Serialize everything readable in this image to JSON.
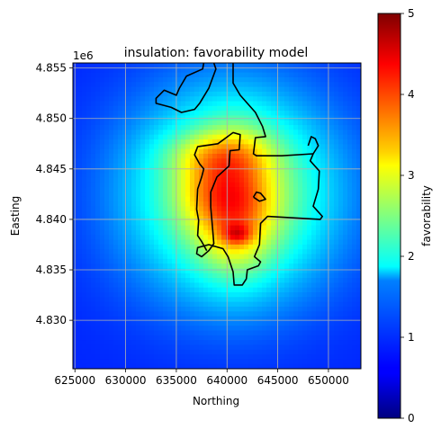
{
  "chart_data": {
    "type": "heatmap",
    "title": "insulation: favorability model",
    "xlabel": "Northing",
    "ylabel": "Easting",
    "y_offset_label": "1e6",
    "xlim": [
      624800,
      653200
    ],
    "ylim": [
      4825200,
      4855500
    ],
    "x_ticks": [
      625000,
      630000,
      635000,
      640000,
      645000,
      650000
    ],
    "x_tick_labels": [
      "625000",
      "630000",
      "635000",
      "640000",
      "645000",
      "650000"
    ],
    "y_ticks": [
      4830000,
      4835000,
      4840000,
      4845000,
      4850000,
      4855000
    ],
    "y_tick_labels": [
      "4.830",
      "4.835",
      "4.840",
      "4.845",
      "4.850",
      "4.855"
    ],
    "grid": true,
    "colormap": "jet",
    "colorbar": {
      "label": "favorability",
      "range": [
        0,
        5
      ],
      "ticks": [
        0,
        1,
        2,
        3,
        4,
        5
      ],
      "tick_labels": [
        "0",
        "1",
        "2",
        "3",
        "4",
        "5"
      ]
    },
    "field": {
      "background": 0.8,
      "peaks": [
        {
          "x": 640500,
          "y": 4842500,
          "value": 2.2,
          "sx": 7000,
          "sy": 7000
        },
        {
          "x": 640800,
          "y": 4841500,
          "value": 1.3,
          "sx": 2500,
          "sy": 4500
        },
        {
          "x": 641000,
          "y": 4838500,
          "value": 0.9,
          "sx": 1000,
          "sy": 700
        },
        {
          "x": 639000,
          "y": 4846500,
          "value": 0.6,
          "sx": 3500,
          "sy": 1500
        },
        {
          "x": 637500,
          "y": 4843000,
          "value": 0.4,
          "sx": 2000,
          "sy": 2500
        }
      ]
    },
    "boundary": [
      [
        637700,
        4855500
      ],
      [
        637600,
        4854900
      ],
      [
        636000,
        4854200
      ],
      [
        635300,
        4853000
      ],
      [
        635000,
        4852300
      ],
      [
        633800,
        4852800
      ],
      [
        633000,
        4852000
      ],
      [
        633000,
        4851500
      ],
      [
        634500,
        4851100
      ],
      [
        635500,
        4850600
      ],
      [
        636800,
        4850900
      ],
      [
        637300,
        4851500
      ],
      [
        638200,
        4853000
      ],
      [
        638900,
        4854900
      ],
      [
        638700,
        4855500
      ]
    ],
    "boundary_main": [
      [
        640600,
        4855500
      ],
      [
        640600,
        4853500
      ],
      [
        641300,
        4852300
      ],
      [
        642800,
        4850600
      ],
      [
        643500,
        4849200
      ],
      [
        643800,
        4848200
      ],
      [
        642800,
        4848100
      ],
      [
        642600,
        4846500
      ],
      [
        642900,
        4846300
      ],
      [
        645400,
        4846300
      ],
      [
        648500,
        4846500
      ],
      [
        648200,
        4845800
      ],
      [
        649100,
        4844800
      ],
      [
        649000,
        4843000
      ],
      [
        648500,
        4841300
      ],
      [
        649400,
        4840300
      ],
      [
        649200,
        4840000
      ],
      [
        644000,
        4840300
      ],
      [
        643300,
        4839600
      ],
      [
        643200,
        4837500
      ],
      [
        642700,
        4836300
      ],
      [
        643300,
        4835800
      ],
      [
        643100,
        4835400
      ],
      [
        642000,
        4835000
      ],
      [
        641900,
        4834100
      ],
      [
        641500,
        4833500
      ],
      [
        640700,
        4833500
      ],
      [
        640600,
        4834800
      ],
      [
        640100,
        4836300
      ],
      [
        639600,
        4837100
      ],
      [
        638200,
        4837500
      ],
      [
        637100,
        4837200
      ],
      [
        637000,
        4836600
      ],
      [
        637500,
        4836300
      ],
      [
        638200,
        4836900
      ],
      [
        638700,
        4837600
      ],
      [
        638400,
        4841200
      ],
      [
        638400,
        4842700
      ],
      [
        639000,
        4844200
      ],
      [
        640200,
        4845300
      ],
      [
        640300,
        4846800
      ],
      [
        641200,
        4846900
      ],
      [
        641300,
        4848400
      ],
      [
        640600,
        4848600
      ],
      [
        639100,
        4847500
      ],
      [
        637100,
        4847200
      ],
      [
        636800,
        4846400
      ],
      [
        637300,
        4845500
      ],
      [
        637700,
        4845000
      ],
      [
        637500,
        4844200
      ],
      [
        637100,
        4843000
      ],
      [
        637000,
        4841000
      ],
      [
        637200,
        4839900
      ],
      [
        637100,
        4838400
      ],
      [
        637500,
        4837800
      ],
      [
        638000,
        4836900
      ]
    ],
    "boundary_east_notch": [
      [
        648000,
        4847300
      ],
      [
        648300,
        4848200
      ],
      [
        648700,
        4848000
      ],
      [
        649000,
        4847300
      ],
      [
        648500,
        4846500
      ]
    ],
    "boundary_island": [
      [
        642600,
        4842200
      ],
      [
        642900,
        4842700
      ],
      [
        643300,
        4842600
      ],
      [
        643800,
        4842000
      ],
      [
        643200,
        4841800
      ],
      [
        642600,
        4842200
      ]
    ]
  }
}
